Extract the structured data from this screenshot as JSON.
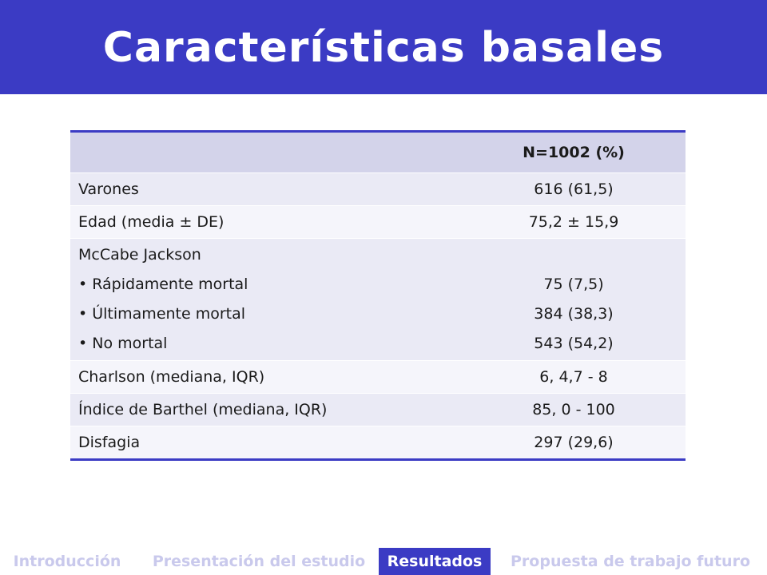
{
  "title": "Características basales",
  "table": {
    "header": "N=1002 (%)",
    "rows": [
      {
        "label": "Varones",
        "value": "616 (61,5)"
      },
      {
        "label": "Edad (media ± DE)",
        "value": "75,2 ± 15,9"
      },
      {
        "label": "McCabe Jackson",
        "items": [
          {
            "label": "• Rápidamente mortal",
            "value": "75 (7,5)"
          },
          {
            "label": "• Últimamente mortal",
            "value": "384 (38,3)"
          },
          {
            "label": "• No mortal",
            "value": "543 (54,2)"
          }
        ]
      },
      {
        "label": "Charlson (mediana, IQR)",
        "value": "6, 4,7 - 8"
      },
      {
        "label": "Índice de Barthel (mediana, IQR)",
        "value": "85, 0 - 100"
      },
      {
        "label": "Disfagia",
        "value": "297 (29,6)"
      }
    ]
  },
  "nav": {
    "items": [
      "Introducción",
      "Presentación del estudio",
      "Resultados",
      "Propuesta de trabajo futuro"
    ],
    "active": "Resultados"
  },
  "colors": {
    "accent": "#3b3bc4",
    "nav_inactive": "#c9c9ec"
  }
}
